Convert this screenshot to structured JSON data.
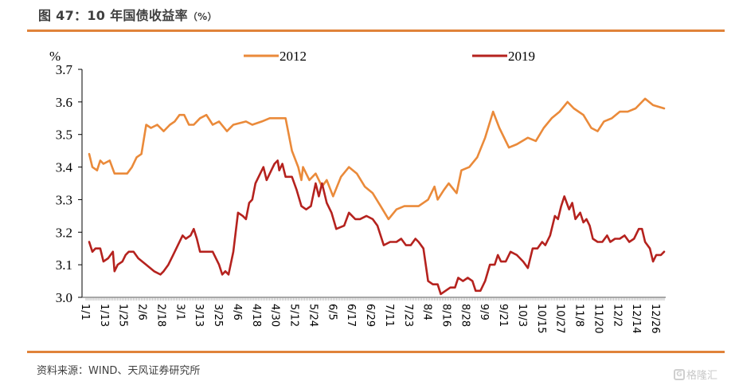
{
  "header": {
    "title": "图 47：10 年国债收益率",
    "title_unit": "（%）"
  },
  "footer": {
    "source": "资料来源：WIND、天风证券研究所",
    "watermark": "格隆汇",
    "watermark_icon": "g-logo-icon"
  },
  "colors": {
    "accent_rule": "#e0833a",
    "series_2012": "#ea8a3a",
    "series_2019": "#b5221e"
  },
  "chart_data": {
    "type": "line",
    "title": "10 年国债收益率（%）",
    "ylabel": "%",
    "xlabel": "",
    "ylim": [
      3.0,
      3.7
    ],
    "yticks": [
      "3.0",
      "3.1",
      "3.2",
      "3.3",
      "3.4",
      "3.5",
      "3.6",
      "3.7"
    ],
    "xlim_day": [
      0,
      365
    ],
    "xticks": [
      {
        "label": "1/1",
        "day": 0
      },
      {
        "label": "1/13",
        "day": 12
      },
      {
        "label": "1/25",
        "day": 24
      },
      {
        "label": "2/6",
        "day": 36
      },
      {
        "label": "2/18",
        "day": 48
      },
      {
        "label": "3/1",
        "day": 60
      },
      {
        "label": "3/13",
        "day": 72
      },
      {
        "label": "3/25",
        "day": 84
      },
      {
        "label": "4/6",
        "day": 96
      },
      {
        "label": "4/18",
        "day": 108
      },
      {
        "label": "4/30",
        "day": 120
      },
      {
        "label": "5/12",
        "day": 132
      },
      {
        "label": "5/24",
        "day": 144
      },
      {
        "label": "6/5",
        "day": 156
      },
      {
        "label": "6/17",
        "day": 168
      },
      {
        "label": "6/29",
        "day": 180
      },
      {
        "label": "7/11",
        "day": 192
      },
      {
        "label": "7/23",
        "day": 204
      },
      {
        "label": "8/4",
        "day": 216
      },
      {
        "label": "8/16",
        "day": 228
      },
      {
        "label": "8/28",
        "day": 240
      },
      {
        "label": "9/9",
        "day": 252
      },
      {
        "label": "9/21",
        "day": 264
      },
      {
        "label": "10/3",
        "day": 276
      },
      {
        "label": "10/15",
        "day": 288
      },
      {
        "label": "10/27",
        "day": 300
      },
      {
        "label": "11/8",
        "day": 312
      },
      {
        "label": "11/20",
        "day": 324
      },
      {
        "label": "12/2",
        "day": 336
      },
      {
        "label": "12/14",
        "day": 348
      },
      {
        "label": "12/26",
        "day": 360
      }
    ],
    "legend_position": "top",
    "grid": false,
    "series": [
      {
        "name": "2012",
        "points": [
          [
            2,
            3.44
          ],
          [
            4,
            3.4
          ],
          [
            7,
            3.39
          ],
          [
            9,
            3.42
          ],
          [
            11,
            3.41
          ],
          [
            15,
            3.42
          ],
          [
            18,
            3.38
          ],
          [
            26,
            3.38
          ],
          [
            29,
            3.4
          ],
          [
            32,
            3.43
          ],
          [
            35,
            3.44
          ],
          [
            38,
            3.53
          ],
          [
            41,
            3.52
          ],
          [
            45,
            3.53
          ],
          [
            49,
            3.51
          ],
          [
            53,
            3.53
          ],
          [
            56,
            3.54
          ],
          [
            59,
            3.56
          ],
          [
            62,
            3.56
          ],
          [
            65,
            3.53
          ],
          [
            68,
            3.53
          ],
          [
            72,
            3.55
          ],
          [
            76,
            3.56
          ],
          [
            80,
            3.53
          ],
          [
            84,
            3.54
          ],
          [
            89,
            3.51
          ],
          [
            93,
            3.53
          ],
          [
            101,
            3.54
          ],
          [
            105,
            3.53
          ],
          [
            111,
            3.54
          ],
          [
            116,
            3.55
          ],
          [
            121,
            3.55
          ],
          [
            126,
            3.55
          ],
          [
            130,
            3.45
          ],
          [
            134,
            3.4
          ],
          [
            136,
            3.36
          ],
          [
            137,
            3.4
          ],
          [
            141,
            3.36
          ],
          [
            145,
            3.38
          ],
          [
            149,
            3.34
          ],
          [
            152,
            3.36
          ],
          [
            156,
            3.31
          ],
          [
            161,
            3.37
          ],
          [
            166,
            3.4
          ],
          [
            171,
            3.38
          ],
          [
            176,
            3.34
          ],
          [
            181,
            3.32
          ],
          [
            186,
            3.28
          ],
          [
            191,
            3.24
          ],
          [
            196,
            3.27
          ],
          [
            201,
            3.28
          ],
          [
            206,
            3.28
          ],
          [
            210,
            3.28
          ],
          [
            216,
            3.3
          ],
          [
            220,
            3.34
          ],
          [
            222,
            3.3
          ],
          [
            226,
            3.33
          ],
          [
            229,
            3.35
          ],
          [
            234,
            3.32
          ],
          [
            237,
            3.39
          ],
          [
            242,
            3.4
          ],
          [
            247,
            3.43
          ],
          [
            252,
            3.49
          ],
          [
            257,
            3.57
          ],
          [
            261,
            3.52
          ],
          [
            267,
            3.46
          ],
          [
            272,
            3.47
          ],
          [
            279,
            3.49
          ],
          [
            284,
            3.48
          ],
          [
            289,
            3.52
          ],
          [
            294,
            3.55
          ],
          [
            299,
            3.57
          ],
          [
            304,
            3.6
          ],
          [
            308,
            3.58
          ],
          [
            314,
            3.56
          ],
          [
            319,
            3.52
          ],
          [
            323,
            3.51
          ],
          [
            327,
            3.54
          ],
          [
            332,
            3.55
          ],
          [
            337,
            3.57
          ],
          [
            342,
            3.57
          ],
          [
            347,
            3.58
          ],
          [
            353,
            3.61
          ],
          [
            358,
            3.59
          ],
          [
            365,
            3.58
          ]
        ]
      },
      {
        "name": "2019",
        "points": [
          [
            2,
            3.17
          ],
          [
            4,
            3.14
          ],
          [
            6,
            3.15
          ],
          [
            9,
            3.15
          ],
          [
            11,
            3.11
          ],
          [
            14,
            3.12
          ],
          [
            17,
            3.14
          ],
          [
            18,
            3.08
          ],
          [
            20,
            3.1
          ],
          [
            23,
            3.11
          ],
          [
            25,
            3.13
          ],
          [
            27,
            3.14
          ],
          [
            30,
            3.14
          ],
          [
            33,
            3.12
          ],
          [
            38,
            3.1
          ],
          [
            43,
            3.08
          ],
          [
            47,
            3.07
          ],
          [
            49,
            3.08
          ],
          [
            52,
            3.1
          ],
          [
            55,
            3.13
          ],
          [
            58,
            3.16
          ],
          [
            61,
            3.19
          ],
          [
            63,
            3.18
          ],
          [
            66,
            3.19
          ],
          [
            68,
            3.21
          ],
          [
            70,
            3.18
          ],
          [
            72,
            3.14
          ],
          [
            75,
            3.14
          ],
          [
            80,
            3.14
          ],
          [
            84,
            3.1
          ],
          [
            86,
            3.07
          ],
          [
            88,
            3.08
          ],
          [
            90,
            3.07
          ],
          [
            93,
            3.14
          ],
          [
            96,
            3.26
          ],
          [
            99,
            3.25
          ],
          [
            101,
            3.24
          ],
          [
            103,
            3.29
          ],
          [
            105,
            3.3
          ],
          [
            107,
            3.35
          ],
          [
            110,
            3.38
          ],
          [
            112,
            3.4
          ],
          [
            114,
            3.36
          ],
          [
            117,
            3.39
          ],
          [
            119,
            3.41
          ],
          [
            121,
            3.42
          ],
          [
            122,
            3.39
          ],
          [
            124,
            3.41
          ],
          [
            126,
            3.37
          ],
          [
            130,
            3.37
          ],
          [
            133,
            3.33
          ],
          [
            136,
            3.28
          ],
          [
            139,
            3.27
          ],
          [
            142,
            3.28
          ],
          [
            145,
            3.35
          ],
          [
            147,
            3.31
          ],
          [
            149,
            3.35
          ],
          [
            152,
            3.29
          ],
          [
            155,
            3.26
          ],
          [
            158,
            3.21
          ],
          [
            163,
            3.22
          ],
          [
            166,
            3.26
          ],
          [
            170,
            3.24
          ],
          [
            173,
            3.24
          ],
          [
            177,
            3.25
          ],
          [
            181,
            3.24
          ],
          [
            184,
            3.22
          ],
          [
            188,
            3.16
          ],
          [
            192,
            3.17
          ],
          [
            196,
            3.17
          ],
          [
            199,
            3.18
          ],
          [
            202,
            3.16
          ],
          [
            205,
            3.16
          ],
          [
            208,
            3.18
          ],
          [
            210,
            3.17
          ],
          [
            213,
            3.15
          ],
          [
            216,
            3.05
          ],
          [
            219,
            3.04
          ],
          [
            222,
            3.04
          ],
          [
            224,
            3.01
          ],
          [
            227,
            3.02
          ],
          [
            230,
            3.03
          ],
          [
            233,
            3.03
          ],
          [
            235,
            3.06
          ],
          [
            238,
            3.05
          ],
          [
            241,
            3.06
          ],
          [
            244,
            3.05
          ],
          [
            246,
            3.02
          ],
          [
            249,
            3.02
          ],
          [
            252,
            3.05
          ],
          [
            255,
            3.1
          ],
          [
            258,
            3.1
          ],
          [
            260,
            3.13
          ],
          [
            262,
            3.11
          ],
          [
            265,
            3.11
          ],
          [
            268,
            3.14
          ],
          [
            272,
            3.13
          ],
          [
            276,
            3.11
          ],
          [
            279,
            3.09
          ],
          [
            282,
            3.15
          ],
          [
            285,
            3.15
          ],
          [
            288,
            3.17
          ],
          [
            290,
            3.16
          ],
          [
            293,
            3.19
          ],
          [
            296,
            3.25
          ],
          [
            298,
            3.24
          ],
          [
            300,
            3.28
          ],
          [
            302,
            3.31
          ],
          [
            305,
            3.27
          ],
          [
            307,
            3.29
          ],
          [
            309,
            3.24
          ],
          [
            312,
            3.26
          ],
          [
            314,
            3.23
          ],
          [
            316,
            3.24
          ],
          [
            318,
            3.22
          ],
          [
            320,
            3.18
          ],
          [
            323,
            3.17
          ],
          [
            326,
            3.17
          ],
          [
            329,
            3.19
          ],
          [
            331,
            3.17
          ],
          [
            334,
            3.18
          ],
          [
            337,
            3.18
          ],
          [
            340,
            3.19
          ],
          [
            343,
            3.17
          ],
          [
            346,
            3.18
          ],
          [
            349,
            3.21
          ],
          [
            351,
            3.21
          ],
          [
            353,
            3.17
          ],
          [
            356,
            3.15
          ],
          [
            358,
            3.11
          ],
          [
            360,
            3.13
          ],
          [
            363,
            3.13
          ],
          [
            365,
            3.14
          ]
        ]
      }
    ]
  }
}
